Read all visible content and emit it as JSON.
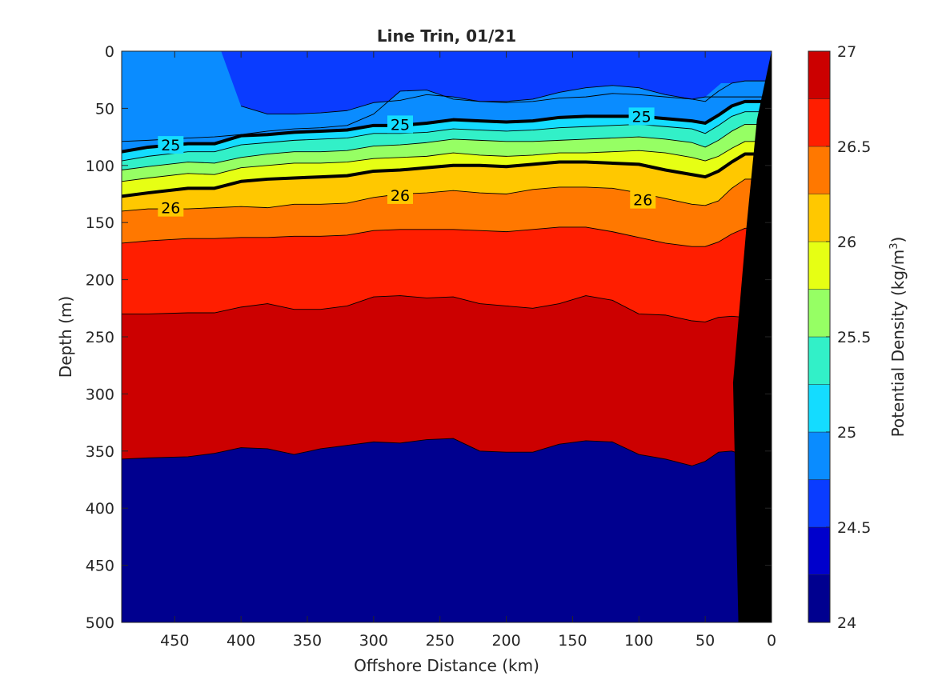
{
  "chart_data": {
    "type": "heatmap",
    "subtype": "filled-contour section",
    "title": "Line Trin, 01/21",
    "xlabel": "Offshore Distance (km)",
    "ylabel": "Depth (m)",
    "colorbar_label": "Potential Density (kg/m",
    "colorbar_label_sup": "3",
    "colorbar_label_end": ")",
    "xlim": [
      490,
      0
    ],
    "x_reversed": true,
    "ylim": [
      0,
      500
    ],
    "y_reversed": true,
    "xticks": [
      450,
      400,
      350,
      300,
      250,
      200,
      150,
      100,
      50,
      0
    ],
    "yticks": [
      0,
      50,
      100,
      150,
      200,
      250,
      300,
      350,
      400,
      450,
      500
    ],
    "colorbar_ticks": [
      24,
      24.5,
      25,
      25.5,
      26,
      26.5,
      27
    ],
    "colorbar_tick_labels": [
      "24",
      "24.5",
      "25",
      "25.5",
      "26",
      "26.5",
      "27"
    ],
    "clim": [
      24,
      27
    ],
    "contour_levels": [
      24.25,
      24.5,
      24.75,
      25,
      25.25,
      25.5,
      25.75,
      26,
      26.25,
      26.5,
      26.75
    ],
    "level_colors": [
      "#00008f",
      "#0000cc",
      "#0a3cff",
      "#0a8cff",
      "#14dcff",
      "#32f0c8",
      "#96ff64",
      "#e6ff14",
      "#ffc800",
      "#ff7800",
      "#ff1e00",
      "#cc0000"
    ],
    "x": [
      490,
      470,
      440,
      420,
      400,
      380,
      360,
      340,
      320,
      300,
      280,
      260,
      240,
      220,
      200,
      180,
      160,
      140,
      120,
      100,
      80,
      60,
      50,
      40,
      30,
      20
    ],
    "isolines": [
      {
        "level": 24.5,
        "depth": [
          null,
          null,
          null,
          null,
          48,
          55,
          55,
          54,
          52,
          45,
          43,
          38,
          40,
          44,
          45,
          44,
          41,
          40,
          37,
          38,
          40,
          42,
          40,
          null,
          null,
          null
        ]
      },
      {
        "level": 24.75,
        "depth": [
          79,
          78,
          76,
          75,
          73,
          70,
          68,
          67,
          65,
          55,
          35,
          34,
          42,
          44,
          44,
          42,
          36,
          32,
          30,
          32,
          38,
          42,
          44,
          35,
          28,
          26
        ]
      },
      {
        "level": 25,
        "depth": [
          88,
          84,
          81,
          81,
          74,
          73,
          71,
          70,
          69,
          65,
          65,
          63,
          60,
          61,
          62,
          61,
          58,
          57,
          57,
          57,
          59,
          61,
          63,
          56,
          48,
          44
        ]
      },
      {
        "level": 25.25,
        "depth": [
          96,
          92,
          88,
          88,
          82,
          80,
          78,
          77,
          76,
          72,
          72,
          71,
          68,
          69,
          70,
          69,
          67,
          66,
          65,
          64,
          66,
          68,
          72,
          65,
          57,
          53
        ]
      },
      {
        "level": 25.5,
        "depth": [
          104,
          101,
          97,
          98,
          93,
          90,
          88,
          88,
          87,
          83,
          82,
          80,
          77,
          78,
          79,
          79,
          78,
          77,
          76,
          75,
          77,
          80,
          84,
          78,
          70,
          64
        ]
      },
      {
        "level": 25.75,
        "depth": [
          114,
          111,
          107,
          108,
          102,
          100,
          98,
          98,
          97,
          94,
          93,
          92,
          89,
          91,
          92,
          91,
          89,
          89,
          88,
          87,
          89,
          93,
          96,
          92,
          85,
          79
        ]
      },
      {
        "level": 26,
        "depth": [
          127,
          124,
          120,
          120,
          114,
          112,
          111,
          110,
          109,
          105,
          104,
          102,
          100,
          100,
          101,
          99,
          97,
          97,
          98,
          99,
          104,
          108,
          110,
          105,
          97,
          90
        ]
      },
      {
        "level": 26.25,
        "depth": [
          140,
          138,
          138,
          137,
          136,
          137,
          134,
          134,
          133,
          128,
          125,
          124,
          122,
          124,
          125,
          121,
          119,
          119,
          120,
          124,
          129,
          134,
          135,
          131,
          120,
          112
        ]
      },
      {
        "level": 26.5,
        "depth": [
          168,
          166,
          164,
          164,
          163,
          163,
          162,
          162,
          161,
          157,
          156,
          156,
          156,
          157,
          158,
          156,
          154,
          154,
          158,
          163,
          168,
          171,
          171,
          167,
          160,
          155
        ]
      },
      {
        "level": 26.75,
        "depth": [
          230,
          230,
          229,
          229,
          224,
          221,
          226,
          226,
          223,
          215,
          214,
          216,
          215,
          221,
          223,
          225,
          221,
          214,
          218,
          230,
          231,
          236,
          237,
          233,
          232,
          233
        ]
      },
      {
        "level": 27,
        "depth": [
          357,
          356,
          355,
          352,
          347,
          348,
          353,
          348,
          345,
          342,
          343,
          340,
          339,
          350,
          351,
          351,
          344,
          341,
          342,
          353,
          357,
          363,
          359,
          351,
          350,
          354
        ]
      }
    ],
    "contour_labels": [
      {
        "text": "25",
        "x": 453,
        "y": 82
      },
      {
        "text": "25",
        "x": 280,
        "y": 64
      },
      {
        "text": "25",
        "x": 98,
        "y": 57
      },
      {
        "text": "26",
        "x": 453,
        "y": 137
      },
      {
        "text": "26",
        "x": 280,
        "y": 126
      },
      {
        "text": "26",
        "x": 97,
        "y": 130
      }
    ],
    "bathymetry": {
      "x": [
        25,
        29,
        19,
        11,
        0
      ],
      "depth": [
        500,
        290,
        155,
        60,
        0
      ]
    },
    "grid": false,
    "colorbar": "right"
  }
}
